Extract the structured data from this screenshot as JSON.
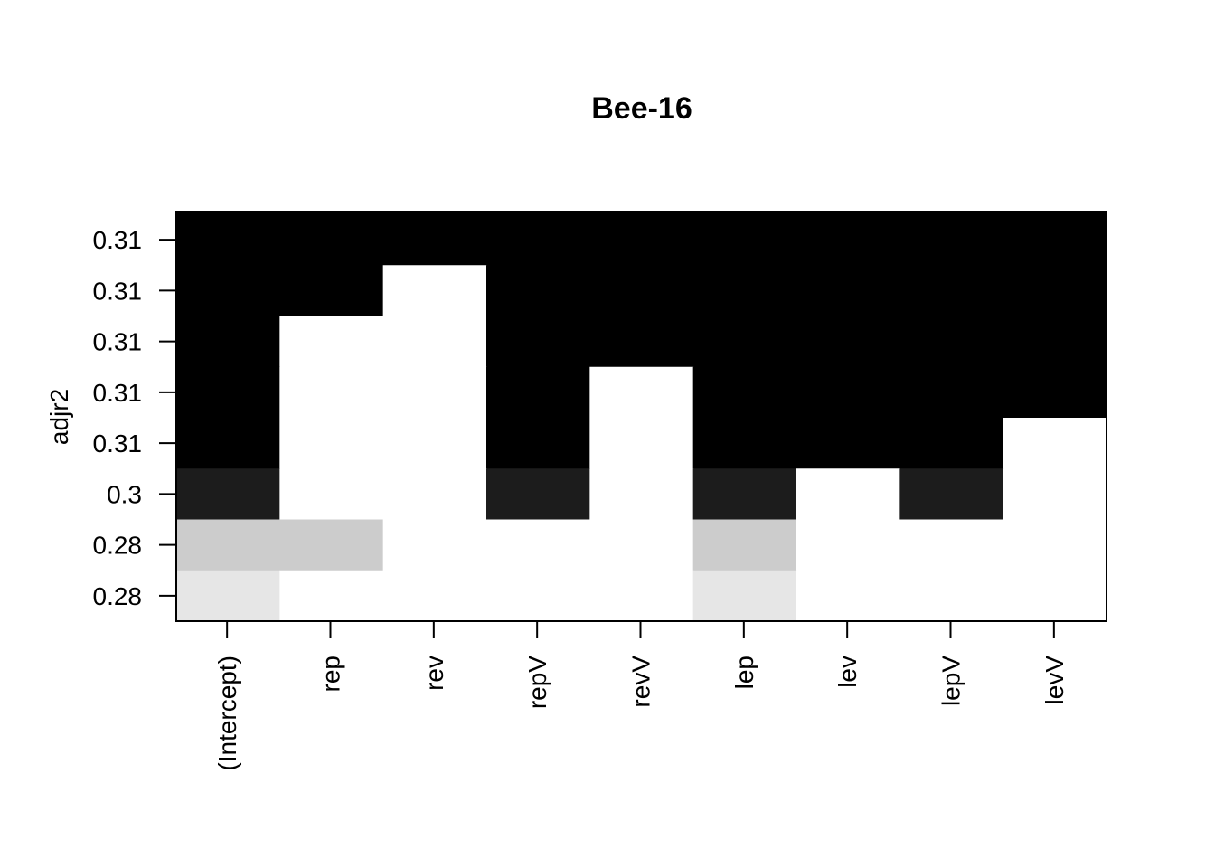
{
  "chart_data": {
    "type": "heatmap",
    "title": "Bee-16",
    "ylabel": "adjr2",
    "xlabel": "",
    "variables": [
      "(Intercept)",
      "rep",
      "rev",
      "repV",
      "revV",
      "lep",
      "lev",
      "lepV",
      "levV"
    ],
    "rows": [
      {
        "label": "0.31",
        "shades": [
          "#000000",
          "#000000",
          "#000000",
          "#000000",
          "#000000",
          "#000000",
          "#000000",
          "#000000",
          "#000000"
        ]
      },
      {
        "label": "0.31",
        "shades": [
          "#000000",
          "#000000",
          "#ffffff",
          "#000000",
          "#000000",
          "#000000",
          "#000000",
          "#000000",
          "#000000"
        ]
      },
      {
        "label": "0.31",
        "shades": [
          "#000000",
          "#ffffff",
          "#ffffff",
          "#000000",
          "#000000",
          "#000000",
          "#000000",
          "#000000",
          "#000000"
        ]
      },
      {
        "label": "0.31",
        "shades": [
          "#000000",
          "#ffffff",
          "#ffffff",
          "#000000",
          "#ffffff",
          "#000000",
          "#000000",
          "#000000",
          "#000000"
        ]
      },
      {
        "label": "0.31",
        "shades": [
          "#000000",
          "#ffffff",
          "#ffffff",
          "#000000",
          "#ffffff",
          "#000000",
          "#000000",
          "#000000",
          "#ffffff"
        ]
      },
      {
        "label": "0.3",
        "shades": [
          "#1c1c1c",
          "#ffffff",
          "#ffffff",
          "#1c1c1c",
          "#ffffff",
          "#1c1c1c",
          "#ffffff",
          "#1c1c1c",
          "#ffffff"
        ]
      },
      {
        "label": "0.28",
        "shades": [
          "#cccccc",
          "#cccccc",
          "#ffffff",
          "#ffffff",
          "#ffffff",
          "#cccccc",
          "#ffffff",
          "#ffffff",
          "#ffffff"
        ]
      },
      {
        "label": "0.28",
        "shades": [
          "#e6e6e6",
          "#ffffff",
          "#ffffff",
          "#ffffff",
          "#ffffff",
          "#e6e6e6",
          "#ffffff",
          "#ffffff",
          "#ffffff"
        ]
      }
    ]
  }
}
